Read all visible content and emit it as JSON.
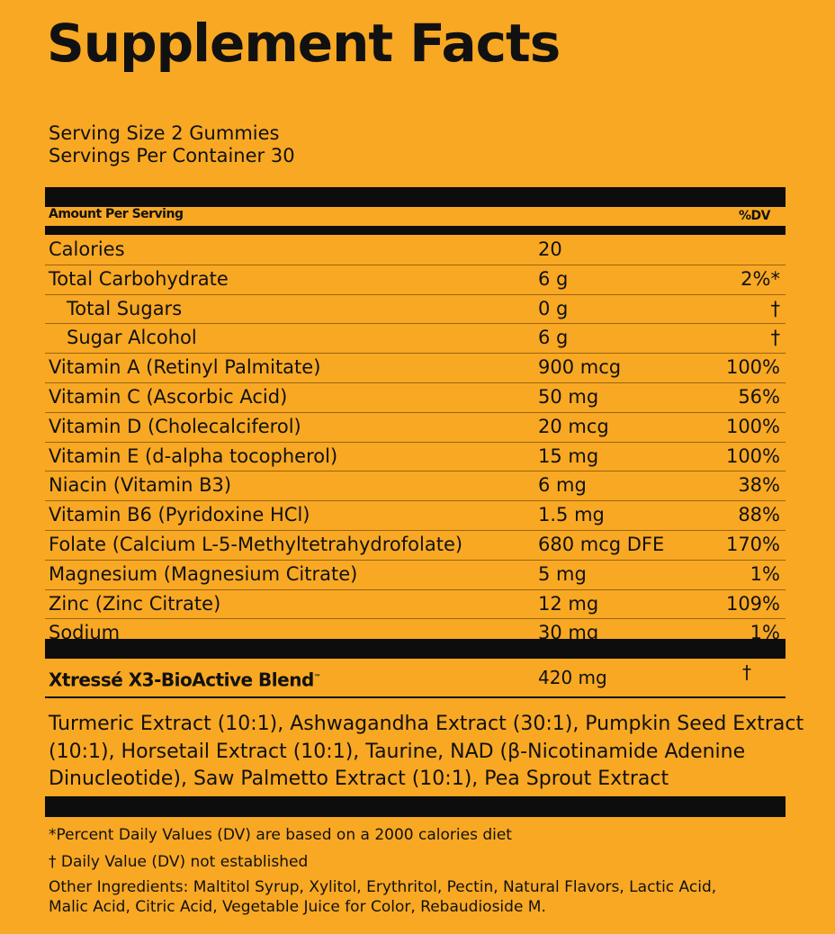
{
  "title": "Supplement Facts",
  "serving_size": "Serving Size 2 Gummies",
  "servings_per_container": "Servings Per Container 30",
  "header": {
    "amount_per_serving": "Amount Per Serving",
    "dv": "%DV"
  },
  "rows": [
    {
      "name": "Calories",
      "amount": "20",
      "dv": ""
    },
    {
      "name": "Total Carbohydrate",
      "amount": "6 g",
      "dv": "2%*"
    },
    {
      "name": "Total Sugars",
      "amount": "0 g",
      "dv": "†"
    },
    {
      "name": "Sugar Alcohol",
      "amount": "6 g",
      "dv": "†"
    },
    {
      "name": "Vitamin A (Retinyl Palmitate)",
      "amount": "900 mcg",
      "dv": "100%"
    },
    {
      "name": "Vitamin C (Ascorbic Acid)",
      "amount": "50 mg",
      "dv": "56%"
    },
    {
      "name": "Vitamin D (Cholecalciferol)",
      "amount": "20 mcg",
      "dv": "100%"
    },
    {
      "name": "Vitamin E (d-alpha tocopherol)",
      "amount": "15 mg",
      "dv": "100%"
    },
    {
      "name": "Niacin (Vitamin B3)",
      "amount": "6 mg",
      "dv": "38%"
    },
    {
      "name": "Vitamin B6 (Pyridoxine HCl)",
      "amount": "1.5 mg",
      "dv": "88%"
    },
    {
      "name": "Folate (Calcium L-5-Methyltetrahydrofolate)",
      "amount": "680 mcg DFE",
      "dv": "170%"
    },
    {
      "name": "Magnesium (Magnesium Citrate)",
      "amount": "5 mg",
      "dv": "1%"
    },
    {
      "name": "Zinc (Zinc Citrate)",
      "amount": "12 mg",
      "dv": "109%"
    },
    {
      "name": "Sodium",
      "amount": "30 mg",
      "dv": "1%"
    }
  ],
  "blend": {
    "name": "Xtressé X3-BioActive Blend",
    "tm": "™",
    "amount": "420 mg",
    "dv": "†"
  },
  "blend_ingredients": "Turmeric Extract (10:1), Ashwagandha Extract (30:1), Pumpkin Seed Extract (10:1), Horsetail Extract (10:1), Taurine, NAD (β-Nicotinamide Adenine Dinucleotide), Saw Palmetto Extract (10:1), Pea Sprout Extract",
  "footnotes": {
    "percent_dv": "*Percent Daily Values (DV) are based on a 2000 calories diet",
    "dagger": "† Daily Value (DV) not established",
    "other_ingredients": "Other Ingredients: Maltitol Syrup, Xylitol, Erythritol, Pectin, Natural Flavors, Lactic Acid, Malic Acid, Citric Acid, Vegetable Juice for Color, Rebaudioside M."
  }
}
